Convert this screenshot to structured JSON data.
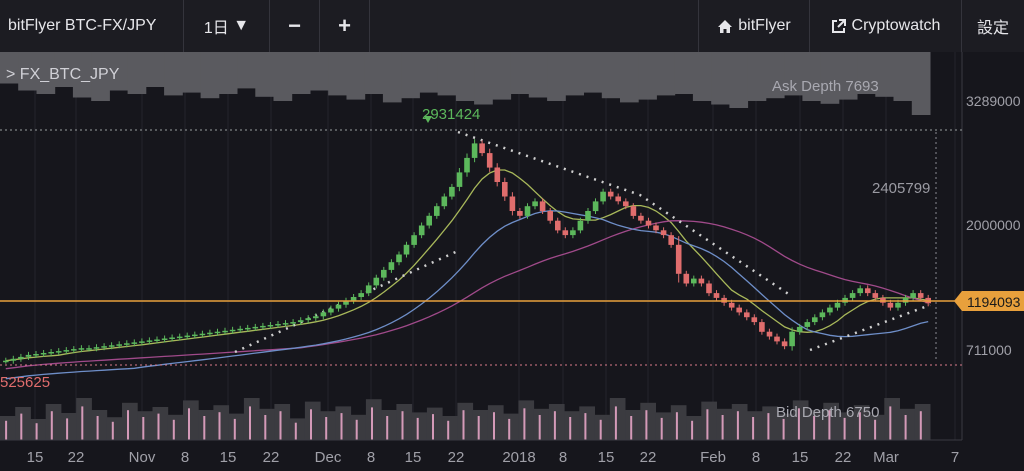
{
  "toolbar": {
    "pair": "bitFlyer BTC-FX/JPY",
    "timeframe": "1日",
    "timeframe_arrow": "▼",
    "zoom_out": "−",
    "zoom_in": "+",
    "bitflyer_link": "bitFlyer",
    "cryptowatch_link": "Cryptowatch",
    "settings": "設定"
  },
  "symbol_label": "> FX_BTC_JPY",
  "colors": {
    "background": "#16161c",
    "up": "#5cb85c",
    "down": "#e06d6d",
    "price_line": "#e8a03c",
    "ema_short": "#a8b85a",
    "ema_long": "#a04a8a",
    "band_upper": "#6e8ec8",
    "trend_dots": "#cfcfcf"
  },
  "chart_data": {
    "type": "candlestick",
    "x_tick_labels": [
      "15",
      "22",
      "Nov",
      "8",
      "15",
      "22",
      "Dec",
      "8",
      "15",
      "22",
      "2018",
      "8",
      "15",
      "22",
      "Feb",
      "8",
      "15",
      "22",
      "Mar",
      "7"
    ],
    "y_tick_labels": [
      "3289000",
      "2000000",
      "711000"
    ],
    "ylim": [
      525625,
      3289000
    ],
    "ask_depth_label": "Ask Depth 7693",
    "bid_depth_label": "Bid Depth 6750",
    "high_label": "2931424",
    "mid_label": "2405799",
    "low_label": "525625",
    "current_price": "1194093",
    "closes": [
      600000,
      620000,
      640000,
      660000,
      670000,
      680000,
      690000,
      700000,
      710000,
      720000,
      730000,
      730000,
      740000,
      750000,
      760000,
      770000,
      780000,
      790000,
      800000,
      810000,
      820000,
      830000,
      840000,
      850000,
      860000,
      870000,
      880000,
      890000,
      900000,
      910000,
      920000,
      930000,
      940000,
      950000,
      960000,
      970000,
      980000,
      990000,
      1000000,
      1020000,
      1040000,
      1060000,
      1100000,
      1140000,
      1180000,
      1220000,
      1260000,
      1300000,
      1380000,
      1460000,
      1540000,
      1620000,
      1700000,
      1800000,
      1900000,
      2000000,
      2100000,
      2200000,
      2300000,
      2400000,
      2550000,
      2700000,
      2850000,
      2750000,
      2600000,
      2450000,
      2300000,
      2150000,
      2100000,
      2200000,
      2250000,
      2150000,
      2050000,
      1950000,
      1900000,
      1950000,
      2050000,
      2150000,
      2250000,
      2350000,
      2300000,
      2250000,
      2200000,
      2100000,
      2050000,
      2000000,
      1950000,
      1900000,
      1800000,
      1500000,
      1400000,
      1450000,
      1400000,
      1300000,
      1250000,
      1200000,
      1150000,
      1100000,
      1050000,
      1000000,
      900000,
      850000,
      800000,
      750000,
      900000,
      950000,
      1000000,
      1050000,
      1100000,
      1150000,
      1200000,
      1250000,
      1300000,
      1350000,
      1300000,
      1250000,
      1200000,
      1150000,
      1200000,
      1250000,
      1300000,
      1250000,
      1194093
    ],
    "ask_depth_values": [
      0.45,
      0.55,
      0.6,
      0.5,
      0.65,
      0.7,
      0.55,
      0.6,
      0.5,
      0.62,
      0.58,
      0.66,
      0.6,
      0.52,
      0.64,
      0.7,
      0.6,
      0.55,
      0.62,
      0.68,
      0.6,
      0.72,
      0.66,
      0.58,
      0.62,
      0.7,
      0.75,
      0.68,
      0.6,
      0.65,
      0.7,
      0.62,
      0.58,
      0.66,
      0.72,
      0.68,
      0.62,
      0.6,
      0.7,
      0.75,
      0.8,
      0.7,
      0.66,
      0.62,
      0.7,
      0.74,
      0.68,
      0.6,
      0.64,
      0.7,
      0.9
    ],
    "bid_depth_values": [
      0.4,
      0.55,
      0.35,
      0.6,
      0.45,
      0.7,
      0.5,
      0.38,
      0.62,
      0.48,
      0.55,
      0.42,
      0.66,
      0.5,
      0.58,
      0.44,
      0.7,
      0.52,
      0.6,
      0.36,
      0.64,
      0.48,
      0.56,
      0.42,
      0.68,
      0.5,
      0.6,
      0.46,
      0.54,
      0.4,
      0.62,
      0.5,
      0.58,
      0.44,
      0.66,
      0.52,
      0.6,
      0.48,
      0.56,
      0.42,
      0.7,
      0.5,
      0.62,
      0.46,
      0.58,
      0.4,
      0.64,
      0.52,
      0.6,
      0.48,
      0.56,
      0.44,
      0.66,
      0.5,
      0.62,
      0.46,
      0.58,
      0.42,
      0.7,
      0.52,
      0.6
    ]
  }
}
